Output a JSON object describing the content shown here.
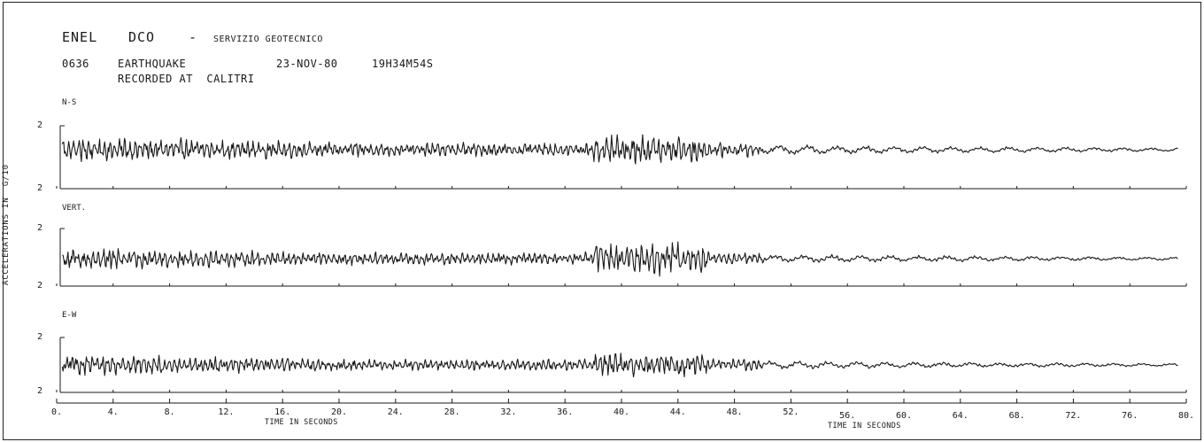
{
  "header": {
    "agency": "ENEL",
    "dept": "DCO",
    "dash": "-",
    "service": "SERVIZIO GEOTECNICO",
    "event_id": "0636",
    "event_type": "EARTHQUAKE",
    "date": "23-NOV-80",
    "time": "19H34M54S",
    "recorded_at": "RECORDED AT  CALITRI"
  },
  "chart_data": {
    "type": "line",
    "title": "",
    "xlabel": "TIME IN SECONDS",
    "ylabel": "ACCELERATIONS IN  G/10",
    "xlim": [
      0,
      80
    ],
    "x_ticks": [
      "0.",
      "4.",
      "8.",
      "12.",
      "16.",
      "20.",
      "24.",
      "28.",
      "32.",
      "36.",
      "40.",
      "44.",
      "48.",
      "52.",
      "56.",
      "60.",
      "64.",
      "68.",
      "72.",
      "76.",
      "80."
    ],
    "series": [
      {
        "name": "N-S",
        "ylim": [
          -2,
          2
        ],
        "amp_top": "2",
        "amp_bottom": "2"
      },
      {
        "name": "VERT.",
        "ylim": [
          -2,
          2
        ],
        "amp_top": "2",
        "amp_bottom": "2"
      },
      {
        "name": "E-W",
        "ylim": [
          -2,
          2
        ],
        "amp_top": "2",
        "amp_bottom": "2"
      }
    ]
  },
  "colors": {
    "ink": "#1a1a1a",
    "paper": "#ffffff"
  }
}
